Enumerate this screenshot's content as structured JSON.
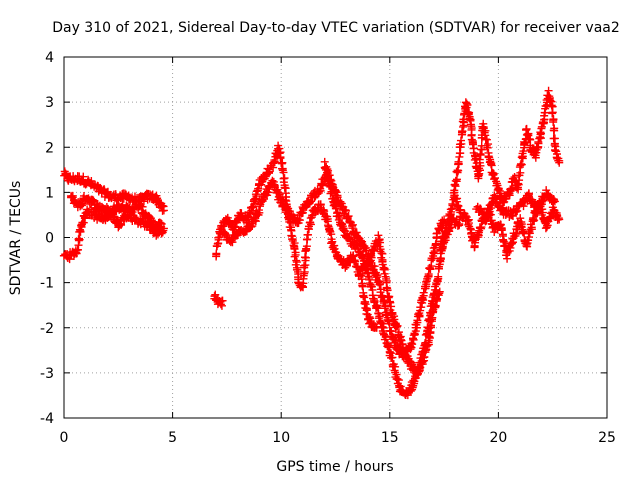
{
  "chart_data": {
    "type": "scatter",
    "title": "Day 310 of 2021, Sidereal Day-to-day VTEC variation (SDTVAR) for receiver vaa2",
    "xlabel": "GPS time / hours",
    "ylabel": "SDTVAR / TECUs",
    "xlim": [
      0,
      25
    ],
    "ylim": [
      -4,
      4
    ],
    "x_ticks": [
      0,
      5,
      10,
      15,
      20,
      25
    ],
    "y_ticks": [
      -4,
      -3,
      -2,
      -1,
      0,
      1,
      2,
      3,
      4
    ],
    "grid": true,
    "marker": "+",
    "color": "#ff0000",
    "series": [
      {
        "name": "SDTVAR",
        "segments": [
          [
            [
              0.0,
              1.4
            ],
            [
              0.2,
              1.3
            ],
            [
              0.5,
              1.3
            ],
            [
              0.8,
              1.3
            ],
            [
              1.2,
              1.2
            ],
            [
              1.5,
              1.1
            ],
            [
              1.8,
              1.0
            ],
            [
              2.2,
              0.9
            ],
            [
              2.6,
              0.9
            ],
            [
              3.0,
              0.9
            ],
            [
              3.4,
              0.8
            ],
            [
              3.8,
              0.9
            ],
            [
              4.2,
              0.9
            ],
            [
              4.6,
              0.6
            ]
          ],
          [
            [
              0.0,
              -0.4
            ],
            [
              0.3,
              -0.4
            ],
            [
              0.6,
              -0.3
            ],
            [
              0.8,
              0.3
            ],
            [
              1.1,
              0.6
            ],
            [
              1.4,
              0.5
            ],
            [
              1.8,
              0.4
            ],
            [
              2.2,
              0.6
            ],
            [
              2.6,
              0.7
            ],
            [
              3.0,
              0.6
            ],
            [
              3.4,
              0.7
            ],
            [
              3.8,
              0.5
            ],
            [
              4.2,
              0.2
            ],
            [
              4.5,
              0.3
            ]
          ],
          [
            [
              0.3,
              0.9
            ],
            [
              0.7,
              0.7
            ],
            [
              1.0,
              0.9
            ],
            [
              1.5,
              0.7
            ],
            [
              2.0,
              0.6
            ],
            [
              2.5,
              0.3
            ],
            [
              2.9,
              0.5
            ],
            [
              3.3,
              0.4
            ],
            [
              3.8,
              0.3
            ],
            [
              4.3,
              0.1
            ],
            [
              4.6,
              0.2
            ]
          ],
          [
            [
              6.9,
              -1.3
            ],
            [
              7.2,
              -1.5
            ],
            [
              7.3,
              -1.4
            ]
          ],
          [
            [
              7.0,
              -0.4
            ],
            [
              7.2,
              0.2
            ],
            [
              7.5,
              0.4
            ],
            [
              7.8,
              0.2
            ],
            [
              8.1,
              0.5
            ],
            [
              8.4,
              0.4
            ],
            [
              8.7,
              0.7
            ],
            [
              9.0,
              1.2
            ],
            [
              9.3,
              1.4
            ],
            [
              9.6,
              1.6
            ],
            [
              9.9,
              2.0
            ],
            [
              10.1,
              1.4
            ],
            [
              10.3,
              0.6
            ],
            [
              10.6,
              -0.2
            ],
            [
              10.8,
              -1.0
            ],
            [
              11.0,
              -1.1
            ],
            [
              11.2,
              0.1
            ],
            [
              11.5,
              0.6
            ],
            [
              11.8,
              0.7
            ],
            [
              12.1,
              0.4
            ],
            [
              12.4,
              -0.2
            ],
            [
              12.7,
              -0.5
            ],
            [
              13.0,
              -0.6
            ],
            [
              13.3,
              -0.4
            ],
            [
              13.6,
              -0.8
            ],
            [
              14.0,
              -0.6
            ],
            [
              14.3,
              -0.2
            ],
            [
              14.5,
              0.0
            ],
            [
              14.7,
              -0.6
            ],
            [
              14.9,
              -1.2
            ],
            [
              15.1,
              -1.7
            ],
            [
              15.4,
              -2.1
            ],
            [
              15.8,
              -2.7
            ],
            [
              16.2,
              -3.0
            ],
            [
              16.5,
              -2.8
            ],
            [
              16.8,
              -2.3
            ],
            [
              17.0,
              -1.6
            ],
            [
              17.3,
              -1.2
            ]
          ],
          [
            [
              7.3,
              0.1
            ],
            [
              7.7,
              -0.1
            ],
            [
              8.0,
              0.1
            ],
            [
              8.4,
              0.2
            ],
            [
              8.8,
              0.4
            ],
            [
              9.2,
              0.9
            ],
            [
              9.6,
              1.2
            ],
            [
              10.0,
              0.8
            ],
            [
              10.4,
              0.5
            ],
            [
              10.7,
              0.3
            ],
            [
              11.0,
              0.6
            ],
            [
              11.4,
              0.9
            ],
            [
              11.8,
              1.1
            ],
            [
              12.1,
              1.4
            ],
            [
              12.3,
              1.0
            ],
            [
              12.6,
              0.5
            ],
            [
              12.9,
              0.1
            ],
            [
              13.2,
              -0.1
            ],
            [
              13.6,
              -0.3
            ],
            [
              14.0,
              -0.8
            ],
            [
              14.3,
              -1.4
            ],
            [
              14.6,
              -1.9
            ],
            [
              14.9,
              -2.4
            ],
            [
              15.2,
              -2.9
            ],
            [
              15.5,
              -3.4
            ],
            [
              15.7,
              -3.5
            ],
            [
              16.0,
              -3.3
            ],
            [
              16.3,
              -3.0
            ],
            [
              16.6,
              -2.4
            ],
            [
              16.9,
              -1.6
            ],
            [
              17.2,
              -0.9
            ],
            [
              17.4,
              -0.3
            ],
            [
              17.6,
              0.1
            ],
            [
              17.9,
              0.4
            ],
            [
              18.2,
              0.3
            ]
          ],
          [
            [
              12.0,
              1.6
            ],
            [
              12.3,
              1.2
            ],
            [
              12.7,
              0.8
            ],
            [
              13.1,
              0.4
            ],
            [
              13.5,
              0.0
            ],
            [
              13.9,
              -0.3
            ],
            [
              14.2,
              -0.6
            ],
            [
              14.5,
              -1.0
            ],
            [
              14.8,
              -1.6
            ],
            [
              15.1,
              -2.2
            ],
            [
              15.4,
              -2.5
            ],
            [
              15.7,
              -2.6
            ],
            [
              16.0,
              -2.4
            ],
            [
              16.3,
              -1.8
            ],
            [
              16.6,
              -1.2
            ],
            [
              16.9,
              -0.6
            ],
            [
              17.2,
              0.1
            ],
            [
              17.5,
              0.4
            ]
          ],
          [
            [
              13.7,
              -1.0
            ],
            [
              13.9,
              -1.6
            ],
            [
              14.1,
              -1.9
            ],
            [
              14.4,
              -2.0
            ]
          ],
          [
            [
              17.3,
              -0.2
            ],
            [
              17.6,
              0.2
            ],
            [
              17.8,
              0.5
            ],
            [
              18.0,
              1.1
            ],
            [
              18.2,
              1.8
            ],
            [
              18.4,
              2.6
            ],
            [
              18.5,
              3.0
            ],
            [
              18.7,
              2.6
            ],
            [
              18.9,
              1.8
            ],
            [
              19.1,
              1.3
            ],
            [
              19.3,
              2.5
            ],
            [
              19.5,
              2.0
            ],
            [
              19.7,
              1.5
            ],
            [
              19.9,
              1.2
            ],
            [
              20.2,
              0.8
            ],
            [
              20.5,
              1.0
            ],
            [
              20.7,
              1.3
            ],
            [
              20.9,
              1.1
            ],
            [
              21.1,
              1.8
            ],
            [
              21.3,
              2.4
            ],
            [
              21.5,
              2.0
            ],
            [
              21.7,
              1.8
            ],
            [
              21.9,
              2.2
            ],
            [
              22.1,
              2.6
            ],
            [
              22.3,
              3.2
            ],
            [
              22.5,
              2.8
            ],
            [
              22.6,
              2.0
            ],
            [
              22.8,
              1.7
            ]
          ],
          [
            [
              18.0,
              0.9
            ],
            [
              18.3,
              0.5
            ],
            [
              18.6,
              0.4
            ],
            [
              18.9,
              -0.2
            ],
            [
              19.2,
              0.3
            ],
            [
              19.5,
              0.6
            ],
            [
              19.8,
              0.2
            ],
            [
              20.1,
              0.3
            ],
            [
              20.4,
              -0.4
            ],
            [
              20.7,
              0.0
            ],
            [
              21.0,
              0.4
            ],
            [
              21.3,
              -0.2
            ],
            [
              21.6,
              0.4
            ],
            [
              21.9,
              0.8
            ],
            [
              22.2,
              0.2
            ],
            [
              22.5,
              0.6
            ],
            [
              22.8,
              0.4
            ]
          ],
          [
            [
              19.0,
              0.7
            ],
            [
              19.4,
              0.4
            ],
            [
              19.8,
              0.9
            ],
            [
              20.2,
              0.6
            ],
            [
              20.6,
              0.5
            ],
            [
              21.0,
              0.7
            ],
            [
              21.4,
              0.9
            ],
            [
              21.8,
              0.6
            ],
            [
              22.2,
              1.0
            ],
            [
              22.6,
              0.8
            ]
          ]
        ]
      }
    ]
  }
}
